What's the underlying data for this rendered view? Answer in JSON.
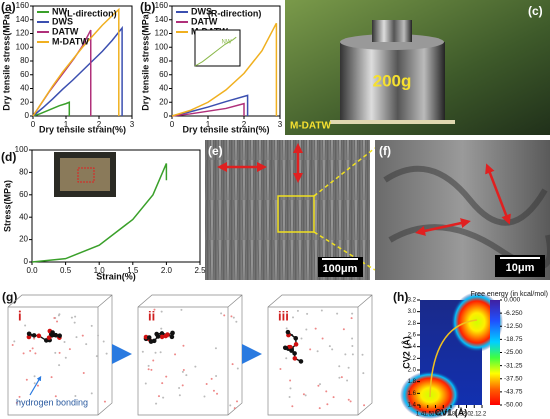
{
  "chart_data": [
    {
      "type": "line",
      "panel": "(a)",
      "annotation": "(L-direction)",
      "xlabel": "Dry tensile strain(%)",
      "ylabel": "Dry tensile stress(MPa)",
      "xlim": [
        0,
        3
      ],
      "xticks": [
        0,
        1,
        2,
        3
      ],
      "ylim": [
        0,
        160
      ],
      "yticks": [
        0,
        20,
        40,
        60,
        80,
        100,
        120,
        140,
        160
      ],
      "legend": "upper left",
      "series": [
        {
          "name": "NW",
          "color": "#3aa02a",
          "x": [
            0,
            0.2,
            0.4,
            0.6,
            0.8,
            1.0,
            1.1,
            1.1
          ],
          "values": [
            0,
            3,
            7,
            11,
            15,
            18,
            20,
            0
          ]
        },
        {
          "name": "DWS",
          "color": "#3b4fb0",
          "x": [
            0,
            0.3,
            0.6,
            0.9,
            1.2,
            1.5,
            1.8,
            2.1,
            2.4,
            2.7,
            2.7
          ],
          "values": [
            0,
            12,
            25,
            39,
            52,
            66,
            80,
            94,
            110,
            128,
            0
          ]
        },
        {
          "name": "DATW",
          "color": "#b0307a",
          "x": [
            0,
            0.25,
            0.5,
            0.75,
            1.0,
            1.25,
            1.5,
            1.75,
            1.75
          ],
          "values": [
            0,
            18,
            36,
            52,
            68,
            84,
            102,
            125,
            0
          ]
        },
        {
          "name": "M-DATW",
          "color": "#f0b020",
          "x": [
            0,
            0.3,
            0.6,
            0.9,
            1.2,
            1.5,
            1.8,
            2.1,
            2.4,
            2.6,
            2.6
          ],
          "values": [
            0,
            22,
            44,
            64,
            82,
            100,
            116,
            132,
            146,
            155,
            0
          ]
        }
      ]
    },
    {
      "type": "line",
      "panel": "(b)",
      "annotation": "(R-direction)",
      "xlabel": "Dry tensile strain(%)",
      "ylabel": "Dry tensile stress(MPa)",
      "xlim": [
        0,
        3
      ],
      "xticks": [
        0,
        1,
        2,
        3
      ],
      "ylim": [
        0,
        160
      ],
      "yticks": [
        0,
        20,
        40,
        60,
        80,
        100,
        120,
        140,
        160
      ],
      "legend": "upper left",
      "series": [
        {
          "name": "DWS",
          "color": "#3b4fb0",
          "x": [
            0,
            0.5,
            1.0,
            1.5,
            2.1,
            2.1
          ],
          "values": [
            0,
            6,
            13,
            21,
            30,
            0
          ]
        },
        {
          "name": "DATW",
          "color": "#b0307a",
          "x": [
            0,
            0.5,
            1.0,
            1.5,
            2.0,
            2.0
          ],
          "values": [
            0,
            3,
            7,
            11,
            18,
            0
          ]
        },
        {
          "name": "M-DATW",
          "color": "#f0b020",
          "x": [
            0,
            0.5,
            1.0,
            1.5,
            2.0,
            2.5,
            2.9,
            2.9
          ],
          "values": [
            0,
            8,
            20,
            38,
            62,
            95,
            135,
            0
          ]
        }
      ]
    },
    {
      "type": "line",
      "inset": true,
      "xlim": [
        0,
        1.2
      ],
      "ylim": [
        0,
        25
      ],
      "series": [
        {
          "name": "NW",
          "color": "#8ab84a",
          "x": [
            0,
            0.2,
            0.4,
            0.6,
            0.8,
            1.0,
            1.1
          ],
          "values": [
            0,
            3,
            7,
            11,
            15,
            18,
            20
          ]
        }
      ]
    },
    {
      "type": "line",
      "panel": "(d)",
      "xlabel": "Strain(%)",
      "ylabel": "Stress(MPa)",
      "xlim": [
        0,
        2.5
      ],
      "xticks": [
        {
          "value": 0,
          "label": "0.0"
        },
        0.5,
        {
          "value": 1,
          "label": "1.0"
        },
        1.5,
        {
          "value": 2,
          "label": "2.0"
        },
        2.5
      ],
      "ylim": [
        0,
        100
      ],
      "yticks": [
        0,
        20,
        40,
        60,
        80,
        100
      ],
      "series": [
        {
          "color": "#3aa02a",
          "x": [
            0,
            0.5,
            1.0,
            1.5,
            1.8,
            2.0,
            2.0
          ],
          "values": [
            0,
            3,
            15,
            38,
            60,
            88,
            73
          ]
        }
      ]
    },
    {
      "type": "heatmap",
      "panel": "(h)",
      "title": "Free energy (in kcal/mol)",
      "xlabel": "CV1 (Å)",
      "ylabel": "CV2 (Å)",
      "xlim": [
        1.4,
        2.2
      ],
      "xticks": [
        1.4,
        1.5,
        1.6,
        1.7,
        {
          "value": 1.8,
          "label": "1.8"
        },
        1.9,
        {
          "value": 2,
          "label": "2.0"
        },
        2.1,
        2.2
      ],
      "ylim": [
        1.4,
        3.2
      ],
      "yticks": [
        1.4,
        1.6,
        1.8,
        {
          "value": 2,
          "label": "2.0"
        },
        2.2,
        2.4,
        2.6,
        2.8,
        {
          "value": 3,
          "label": "3.0"
        },
        3.2
      ],
      "clim": [
        -50,
        0
      ],
      "cticks": [
        {
          "value": 0,
          "label": "0.000"
        },
        {
          "value": -6.25,
          "label": "-6.250"
        },
        {
          "value": -12.5,
          "label": "-12.50"
        },
        {
          "value": -18.75,
          "label": "-18.75"
        },
        {
          "value": -25,
          "label": "-25.00"
        },
        {
          "value": -31.25,
          "label": "-31.25"
        },
        {
          "value": -37.5,
          "label": "-37.50"
        },
        {
          "value": -43.75,
          "label": "-43.75"
        },
        {
          "value": -50,
          "label": "-50.00"
        }
      ]
    }
  ],
  "images": {
    "c_panel": "(c)",
    "c_weight": "200g",
    "c_label": "M-DATW",
    "e_panel": "(e)",
    "e_scale": "100μm",
    "f_panel": "(f)",
    "f_scale": "10μm",
    "g_panel": "(g)",
    "g_steps": [
      "i",
      "ii",
      "iii"
    ],
    "g_annotation": "hydrogen bonding"
  }
}
